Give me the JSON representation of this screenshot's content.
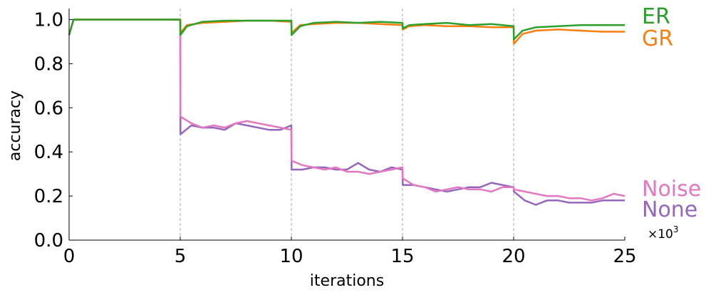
{
  "chart_data": {
    "type": "line",
    "xlabel": "iterations",
    "ylabel": "accuracy",
    "x_multiplier_label": "×10",
    "x_multiplier_exp": "3",
    "xlim": [
      0,
      25
    ],
    "ylim": [
      0,
      1.05
    ],
    "x_ticks": [
      "0",
      "5",
      "10",
      "15",
      "20",
      "25"
    ],
    "y_ticks": [
      "0.0",
      "0.2",
      "0.4",
      "0.6",
      "0.8",
      "1.0"
    ],
    "task_boundaries": [
      5,
      10,
      15,
      20
    ],
    "grid": false,
    "legend_placement": "right, inline at line ends",
    "series": [
      {
        "name": "ER",
        "color": "#2ca02c",
        "points": [
          [
            0,
            0.93
          ],
          [
            0.2,
            1.0
          ],
          [
            5,
            1.0
          ],
          [
            5.01,
            0.93
          ],
          [
            5.3,
            0.97
          ],
          [
            6,
            0.99
          ],
          [
            7,
            0.995
          ],
          [
            8,
            0.995
          ],
          [
            9,
            0.995
          ],
          [
            10,
            0.995
          ],
          [
            10.01,
            0.93
          ],
          [
            10.4,
            0.97
          ],
          [
            11,
            0.985
          ],
          [
            12,
            0.99
          ],
          [
            13,
            0.985
          ],
          [
            14,
            0.99
          ],
          [
            15,
            0.985
          ],
          [
            15.01,
            0.96
          ],
          [
            15.3,
            0.975
          ],
          [
            16,
            0.98
          ],
          [
            17,
            0.985
          ],
          [
            18,
            0.975
          ],
          [
            19,
            0.98
          ],
          [
            20,
            0.97
          ],
          [
            20.01,
            0.91
          ],
          [
            20.4,
            0.95
          ],
          [
            21,
            0.965
          ],
          [
            22,
            0.97
          ],
          [
            23,
            0.975
          ],
          [
            24,
            0.975
          ],
          [
            25,
            0.975
          ]
        ]
      },
      {
        "name": "GR",
        "color": "#ff7f0e",
        "points": [
          [
            0,
            0.93
          ],
          [
            0.2,
            1.0
          ],
          [
            5,
            1.0
          ],
          [
            5.01,
            0.94
          ],
          [
            5.3,
            0.975
          ],
          [
            6,
            0.985
          ],
          [
            7,
            0.99
          ],
          [
            8,
            0.995
          ],
          [
            9,
            0.995
          ],
          [
            10,
            0.99
          ],
          [
            10.01,
            0.94
          ],
          [
            10.4,
            0.975
          ],
          [
            11,
            0.98
          ],
          [
            12,
            0.985
          ],
          [
            13,
            0.985
          ],
          [
            14,
            0.98
          ],
          [
            15,
            0.975
          ],
          [
            15.01,
            0.955
          ],
          [
            15.3,
            0.97
          ],
          [
            16,
            0.975
          ],
          [
            17,
            0.97
          ],
          [
            18,
            0.97
          ],
          [
            19,
            0.965
          ],
          [
            20,
            0.965
          ],
          [
            20.01,
            0.89
          ],
          [
            20.4,
            0.935
          ],
          [
            21,
            0.95
          ],
          [
            22,
            0.955
          ],
          [
            23,
            0.95
          ],
          [
            24,
            0.945
          ],
          [
            25,
            0.945
          ]
        ]
      },
      {
        "name": "Noise",
        "color": "#e377c2",
        "points": [
          [
            0,
            0.93
          ],
          [
            0.2,
            1.0
          ],
          [
            5,
            1.0
          ],
          [
            5.01,
            0.56
          ],
          [
            5.5,
            0.53
          ],
          [
            6,
            0.51
          ],
          [
            6.5,
            0.52
          ],
          [
            7,
            0.51
          ],
          [
            7.5,
            0.53
          ],
          [
            8,
            0.54
          ],
          [
            8.5,
            0.53
          ],
          [
            9,
            0.52
          ],
          [
            9.5,
            0.51
          ],
          [
            10,
            0.5
          ],
          [
            10.01,
            0.36
          ],
          [
            10.5,
            0.34
          ],
          [
            11,
            0.33
          ],
          [
            11.5,
            0.32
          ],
          [
            12,
            0.33
          ],
          [
            12.5,
            0.31
          ],
          [
            13,
            0.31
          ],
          [
            13.5,
            0.3
          ],
          [
            14,
            0.31
          ],
          [
            14.5,
            0.32
          ],
          [
            15,
            0.33
          ],
          [
            15.01,
            0.28
          ],
          [
            15.5,
            0.25
          ],
          [
            16,
            0.24
          ],
          [
            16.5,
            0.22
          ],
          [
            17,
            0.23
          ],
          [
            17.5,
            0.24
          ],
          [
            18,
            0.23
          ],
          [
            18.5,
            0.23
          ],
          [
            19,
            0.22
          ],
          [
            19.5,
            0.24
          ],
          [
            20,
            0.24
          ],
          [
            20.01,
            0.23
          ],
          [
            20.5,
            0.22
          ],
          [
            21,
            0.21
          ],
          [
            21.5,
            0.2
          ],
          [
            22,
            0.2
          ],
          [
            22.5,
            0.19
          ],
          [
            23,
            0.19
          ],
          [
            23.5,
            0.18
          ],
          [
            24,
            0.19
          ],
          [
            24.5,
            0.21
          ],
          [
            25,
            0.2
          ]
        ]
      },
      {
        "name": "None",
        "color": "#9467bd",
        "points": [
          [
            0,
            0.93
          ],
          [
            0.2,
            1.0
          ],
          [
            5,
            1.0
          ],
          [
            5.01,
            0.48
          ],
          [
            5.5,
            0.52
          ],
          [
            6,
            0.51
          ],
          [
            6.5,
            0.51
          ],
          [
            7,
            0.5
          ],
          [
            7.5,
            0.53
          ],
          [
            8,
            0.52
          ],
          [
            8.5,
            0.51
          ],
          [
            9,
            0.5
          ],
          [
            9.5,
            0.5
          ],
          [
            10,
            0.52
          ],
          [
            10.01,
            0.32
          ],
          [
            10.5,
            0.32
          ],
          [
            11,
            0.33
          ],
          [
            11.5,
            0.33
          ],
          [
            12,
            0.32
          ],
          [
            12.5,
            0.32
          ],
          [
            13,
            0.35
          ],
          [
            13.5,
            0.32
          ],
          [
            14,
            0.31
          ],
          [
            14.5,
            0.33
          ],
          [
            15,
            0.32
          ],
          [
            15.01,
            0.25
          ],
          [
            15.5,
            0.25
          ],
          [
            16,
            0.24
          ],
          [
            16.5,
            0.23
          ],
          [
            17,
            0.22
          ],
          [
            17.5,
            0.23
          ],
          [
            18,
            0.24
          ],
          [
            18.5,
            0.24
          ],
          [
            19,
            0.26
          ],
          [
            19.5,
            0.25
          ],
          [
            20,
            0.24
          ],
          [
            20.01,
            0.22
          ],
          [
            20.5,
            0.18
          ],
          [
            21,
            0.16
          ],
          [
            21.5,
            0.18
          ],
          [
            22,
            0.18
          ],
          [
            22.5,
            0.17
          ],
          [
            23,
            0.17
          ],
          [
            23.5,
            0.17
          ],
          [
            24,
            0.18
          ],
          [
            24.5,
            0.18
          ],
          [
            25,
            0.18
          ]
        ]
      }
    ]
  }
}
